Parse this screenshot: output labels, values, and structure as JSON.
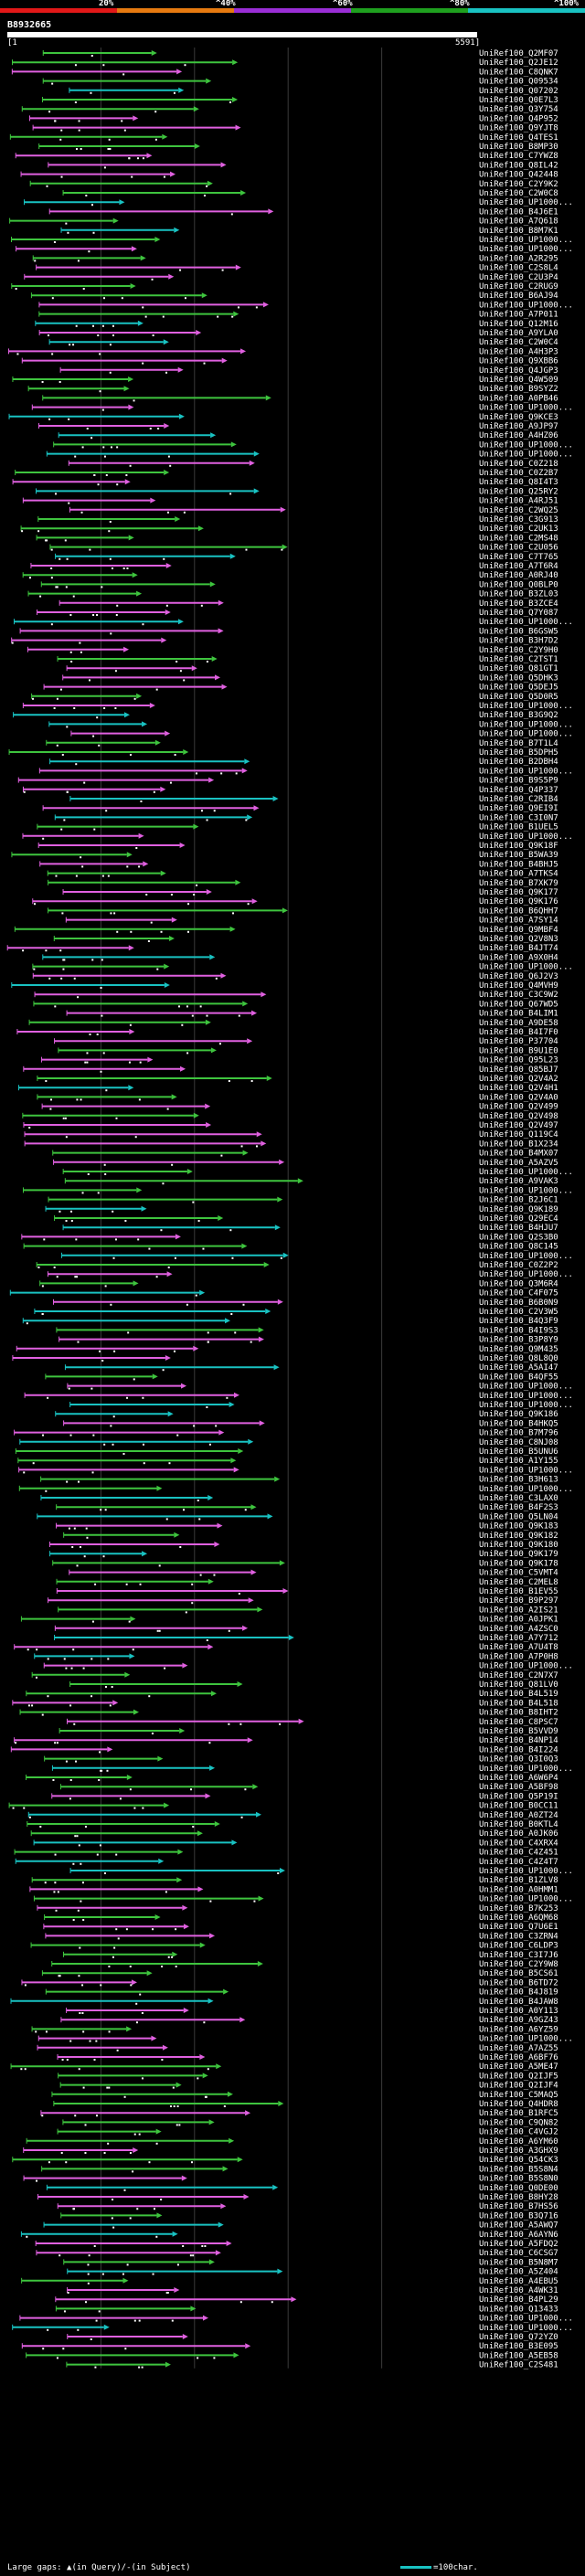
{
  "chart_data": {
    "type": "alignment",
    "query_id": "B8932665",
    "query_range": [
      1,
      5591
    ],
    "identity_scale": [
      {
        "label": "20%",
        "color": "#e21818"
      },
      {
        "label": "^40%",
        "color": "#e67a10"
      },
      {
        "label": "^60%",
        "color": "#9a2ed6"
      },
      {
        "label": "^80%",
        "color": "#1fa01f"
      },
      {
        "label": "^100%",
        "color": "#19c2c2"
      }
    ],
    "colors": {
      "magenta": "#e060e0",
      "green": "#3ec43e",
      "cyan": "#19c2c2",
      "orange": "#e68a18",
      "grid": "#3a3a3a"
    },
    "hits": [
      "UniRef100_Q2MF07",
      "UniRef100_Q2JE12",
      "UniRef100_C8QNK7",
      "UniRef100_Q09534",
      "UniRef100_Q07202",
      "UniRef100_Q0E7L3",
      "UniRef100_Q3Y754",
      "UniRef100_Q4P952",
      "UniRef100_Q9YJT8",
      "UniRef100_Q4TES1",
      "UniRef100_B8MP30",
      "UniRef100_C7YWZ8",
      "UniRef100_Q8IL42",
      "UniRef100_Q42448",
      "UniRef100_C2Y9K2",
      "UniRef100_C2W0C8",
      "UniRef100_UP1000...",
      "UniRef100_B4J6E1",
      "UniRef100_A7Q618",
      "UniRef100_B8M7K1",
      "UniRef100_UP1000...",
      "UniRef100_UP1000...",
      "UniRef100_A2R295",
      "UniRef100_C2S8L4",
      "UniRef100_C2U3P4",
      "UniRef100_C2RUG9",
      "UniRef100_B6AJ94",
      "UniRef100_UP1000...",
      "UniRef100_A7P011",
      "UniRef100_Q12M16",
      "UniRef100_A9YLA0",
      "UniRef100_C2W0C4",
      "UniRef100_A4H3P3",
      "UniRef100_Q9XBB6",
      "UniRef100_Q4JGP3",
      "UniRef100_Q4W509",
      "UniRef100_B9SYZ2",
      "UniRef100_A0PB46",
      "UniRef100_UP1000...",
      "UniRef100_Q9KCE3",
      "UniRef100_A9JP97",
      "UniRef100_A4HZ06",
      "UniRef100_UP1000...",
      "UniRef100_UP1000...",
      "UniRef100_C0Z218",
      "UniRef100_C0Z2B7",
      "UniRef100_Q8I4T3",
      "UniRef100_Q25RY2",
      "UniRef100_A4RJ51",
      "UniRef100_C2WQ25",
      "UniRef100_C3G913",
      "UniRef100_C2UK13",
      "UniRef100_C2MS48",
      "UniRef100_C2U056",
      "UniRef100_C7T765",
      "UniRef100_A7T6R4",
      "UniRef100_A0RJ40",
      "UniRef100_Q0BLP0",
      "UniRef100_B3ZL03",
      "UniRef100_B3ZCE4",
      "UniRef100_Q7Y087",
      "UniRef100_UP1000...",
      "UniRef100_B6GSW5",
      "UniRef100_B3H7D2",
      "UniRef100_C2Y9H0",
      "UniRef100_C2TST1",
      "UniRef100_Q81GT1",
      "UniRef100_Q5DHK3",
      "UniRef100_Q5DEJ5",
      "UniRef100_Q5D0R5",
      "UniRef100_UP1000...",
      "UniRef100_B3G9Q2",
      "UniRef100_UP1000...",
      "UniRef100_UP1000...",
      "UniRef100_B7T1L4",
      "UniRef100_B5DPH5",
      "UniRef100_B2DBH4",
      "UniRef100_UP1000...",
      "UniRef100_B9S5P9",
      "UniRef100_Q4P337",
      "UniRef100_C2RIB4",
      "UniRef100_Q9EI9I",
      "UniRef100_C3I0N7",
      "UniRef100_B1UEL5",
      "UniRef100_UP1000...",
      "UniRef100_Q9K18F",
      "UniRef100_B5WA39",
      "UniRef100_B4BHJ5",
      "UniRef100_A7TKS4",
      "UniRef100_B7XK79",
      "UniRef100_Q9K177",
      "UniRef100_Q9K176",
      "UniRef100_B6QHH7",
      "UniRef100_A7SY14",
      "UniRef100_Q9MBF4",
      "UniRef100_Q2V8N3",
      "UniRef100_B4JT74",
      "UniRef100_A9X0H4",
      "UniRef100_UP1000...",
      "UniRef100_Q6J2V3",
      "UniRef100_Q4MVH9",
      "UniRef100_C3C9W2",
      "UniRef100_Q67WD5",
      "UniRef100_B4LIM1",
      "UniRef100_A9DE58",
      "UniRef100_B4I7F0",
      "UniRef100_P37704",
      "UniRef100_B9U1E0",
      "UniRef100_Q95L23",
      "UniRef100_Q85BJ7",
      "UniRef100_Q2V4A2",
      "UniRef100_Q2V4H1",
      "UniRef100_Q2V4A0",
      "UniRef100_Q2V499",
      "UniRef100_Q2V498",
      "UniRef100_Q2V497",
      "UniRef100_Q119C4",
      "UniRef100_B1X234",
      "UniRef100_B4MX07",
      "UniRef100_A5AZV5",
      "UniRef100_UP1000...",
      "UniRef100_A9VAK3",
      "UniRef100_UP1000...",
      "UniRef100_B2J6C1",
      "UniRef100_Q9K189",
      "UniRef100_Q29EC4",
      "UniRef100_B4HJU7",
      "UniRef100_Q2S3B0",
      "UniRef100_Q8C145",
      "UniRef100_UP1000...",
      "UniRef100_C0Z2P2",
      "UniRef100_UP1000...",
      "UniRef100_Q3M6R4",
      "UniRef100_C4F075",
      "UniRef100_B6B0N9",
      "UniRef100_C2V3W5",
      "UniRef100_B4Q3F9",
      "UniRef100_B4I9S3",
      "UniRef100_B3P8Y9",
      "UniRef100_Q9M435",
      "UniRef100_Q8L8Q0",
      "UniRef100_A5AI47",
      "UniRef100_B4QF55",
      "UniRef100_UP1000...",
      "UniRef100_UP1000...",
      "UniRef100_UP1000...",
      "UniRef100_Q9K186",
      "UniRef100_B4HKQ5",
      "UniRef100_B7M796",
      "UniRef100_C8NJ08",
      "UniRef100_B5UNU6",
      "UniRef100_A1Y155",
      "UniRef100_UP1000...",
      "UniRef100_B3H613",
      "UniRef100_UP1000...",
      "UniRef100_C3LAX0",
      "UniRef100_B4F2S3",
      "UniRef100_Q5LN04",
      "UniRef100_Q9K183",
      "UniRef100_Q9K182",
      "UniRef100_Q9K180",
      "UniRef100_Q9K179",
      "UniRef100_Q9K178",
      "UniRef100_C5VMT4",
      "UniRef100_C2MEL8",
      "UniRef100_B1EV55",
      "UniRef100_B9P297",
      "UniRef100_A2IS21",
      "UniRef100_A0JPK1",
      "UniRef100_A4ZSC0",
      "UniRef100_A7Y712",
      "UniRef100_A7U4T8",
      "UniRef100_A7P0H8",
      "UniRef100_UP1000...",
      "UniRef100_C2N7X7",
      "UniRef100_Q81LV0",
      "UniRef100_B4L519",
      "UniRef100_B4L518",
      "UniRef100_B8IHT2",
      "UniRef100_C8PSC7",
      "UniRef100_B5VVD9",
      "UniRef100_B4NP14",
      "UniRef100_B4I224",
      "UniRef100_Q3I0Q3",
      "UniRef100_UP1000...",
      "UniRef100_A6W6P4",
      "UniRef100_A5BF98",
      "UniRef100_Q5P19I",
      "UniRef100_B0CC11",
      "UniRef100_A0ZT24",
      "UniRef100_B0KTL4",
      "UniRef100_A0JK06",
      "UniRef100_C4XRX4",
      "UniRef100_C4Z451",
      "UniRef100_C4Z4T7",
      "UniRef100_UP1000...",
      "UniRef100_B1ZLV8",
      "UniRef100_A0HMM1",
      "UniRef100_UP1000...",
      "UniRef100_B7K253",
      "UniRef100_A6QM68",
      "UniRef100_Q7U6E1",
      "UniRef100_C3ZRN4",
      "UniRef100_C6LDP3",
      "UniRef100_C3I7J6",
      "UniRef100_C2Y9W8",
      "UniRef100_B5CS61",
      "UniRef100_B6TD72",
      "UniRef100_B4J819",
      "UniRef100_B4JAW8",
      "UniRef100_A0Y113",
      "UniRef100_A9GZ43",
      "UniRef100_A6YZ59",
      "UniRef100_UP1000...",
      "UniRef100_A7AZ55",
      "UniRef100_A6BF76",
      "UniRef100_A5ME47",
      "UniRef100_Q2IJF5",
      "UniRef100_Q2IJF4",
      "UniRef100_C5MAQ5",
      "UniRef100_Q4HDR8",
      "UniRef100_B1RFC5",
      "UniRef100_C9QN82",
      "UniRef100_C4VGJ2",
      "UniRef100_A6YM60",
      "UniRef100_A3GHX9",
      "UniRef100_Q54CK3",
      "UniRef100_B5S8N4",
      "UniRef100_B5S8N0",
      "UniRef100_Q0DE00",
      "UniRef100_B8HY28",
      "UniRef100_B7HS56",
      "UniRef100_B3Q716",
      "UniRef100_A5AWQ7",
      "UniRef100_A6AYN6",
      "UniRef100_A5FDQ2",
      "UniRef100_C6CSG7",
      "UniRef100_B5N8M7",
      "UniRef100_A5Z404",
      "UniRef100_A4EBU5",
      "UniRef100_A4WK31",
      "UniRef100_B4PL29",
      "UniRef100_Q13433",
      "UniRef100_UP1000...",
      "UniRef100_UP1000...",
      "UniRef100_Q72YZ0",
      "UniRef100_B3E095",
      "UniRef100_A5EB58",
      "UniRef100_C2S481"
    ],
    "legend": {
      "large_gaps": "Large gaps: ",
      "gap_query": "▲(in Query)",
      "gap_sep": "/",
      "gap_subject": "-(in Subject)",
      "scale_label": "=100char."
    }
  }
}
